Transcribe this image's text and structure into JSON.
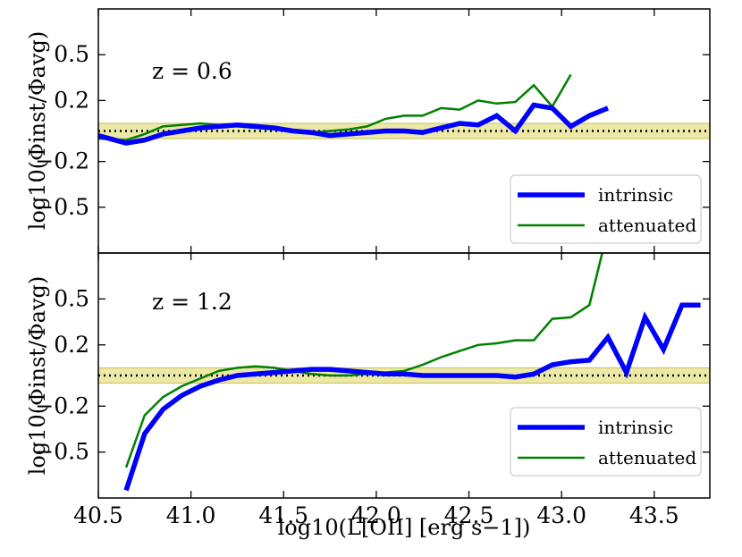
{
  "chart_data": [
    {
      "type": "line",
      "panel": "top",
      "annotation": "z = 0.6",
      "ylabel": "log10(Φinst/Φavg)",
      "xlim": [
        40.5,
        43.8
      ],
      "ylim": [
        -0.8,
        0.8
      ],
      "yticks": [
        {
          "value": 0.5,
          "label": "0.5"
        },
        {
          "value": 0.2,
          "label": "0.2"
        },
        {
          "value": -0.2,
          "label": "−0.2"
        },
        {
          "value": -0.5,
          "label": "−0.5"
        }
      ],
      "reference_line": 0.0,
      "band": [
        -0.05,
        0.05
      ],
      "legend_position": "lower right",
      "series": [
        {
          "name": "intrinsic",
          "color": "#0000ff",
          "x": [
            40.5,
            40.65,
            40.75,
            40.85,
            40.95,
            41.05,
            41.15,
            41.25,
            41.35,
            41.45,
            41.55,
            41.65,
            41.75,
            41.85,
            41.95,
            42.05,
            42.15,
            42.25,
            42.35,
            42.45,
            42.55,
            42.65,
            42.75,
            42.85,
            42.95,
            43.05,
            43.15,
            43.25
          ],
          "y": [
            -0.03,
            -0.08,
            -0.06,
            -0.02,
            0.0,
            0.02,
            0.03,
            0.04,
            0.03,
            0.02,
            0.0,
            -0.01,
            -0.03,
            -0.02,
            -0.01,
            0.0,
            0.0,
            -0.01,
            0.02,
            0.05,
            0.04,
            0.1,
            0.0,
            0.17,
            0.15,
            0.03,
            0.1,
            0.15
          ]
        },
        {
          "name": "attenuated",
          "color": "#008000",
          "x": [
            40.5,
            40.65,
            40.75,
            40.85,
            40.95,
            41.05,
            41.15,
            41.25,
            41.35,
            41.45,
            41.55,
            41.65,
            41.75,
            41.85,
            41.95,
            42.05,
            42.15,
            42.25,
            42.35,
            42.45,
            42.55,
            42.65,
            42.75,
            42.85,
            42.95,
            43.05
          ],
          "y": [
            -0.05,
            -0.06,
            -0.02,
            0.03,
            0.04,
            0.05,
            0.04,
            0.03,
            0.02,
            0.01,
            0.0,
            -0.01,
            0.0,
            0.01,
            0.03,
            0.08,
            0.1,
            0.1,
            0.15,
            0.14,
            0.2,
            0.18,
            0.19,
            0.3,
            0.16,
            0.37
          ]
        }
      ]
    },
    {
      "type": "line",
      "panel": "bottom",
      "annotation": "z = 1.2",
      "xlabel": "log10(L[OII] [erg s−1])",
      "ylabel": "log10(Φinst/Φavg)",
      "xlim": [
        40.5,
        43.8
      ],
      "ylim": [
        -0.8,
        0.8
      ],
      "xticks": [
        {
          "value": 40.5,
          "label": "40.5"
        },
        {
          "value": 41.0,
          "label": "41.0"
        },
        {
          "value": 41.5,
          "label": "41.5"
        },
        {
          "value": 42.0,
          "label": "42.0"
        },
        {
          "value": 42.5,
          "label": "42.5"
        },
        {
          "value": 43.0,
          "label": "43.0"
        },
        {
          "value": 43.5,
          "label": "43.5"
        }
      ],
      "yticks": [
        {
          "value": 0.5,
          "label": "0.5"
        },
        {
          "value": 0.2,
          "label": "0.2"
        },
        {
          "value": -0.2,
          "label": "−0.2"
        },
        {
          "value": -0.5,
          "label": "−0.5"
        }
      ],
      "reference_line": 0.0,
      "band": [
        -0.05,
        0.05
      ],
      "legend_position": "lower right",
      "series": [
        {
          "name": "intrinsic",
          "color": "#0000ff",
          "x": [
            40.65,
            40.75,
            40.85,
            40.95,
            41.05,
            41.15,
            41.25,
            41.35,
            41.45,
            41.55,
            41.65,
            41.75,
            41.85,
            41.95,
            42.05,
            42.15,
            42.25,
            42.35,
            42.45,
            42.55,
            42.65,
            42.75,
            42.85,
            42.95,
            43.05,
            43.15,
            43.25,
            43.35,
            43.45,
            43.55,
            43.65,
            43.75
          ],
          "y": [
            -0.75,
            -0.38,
            -0.22,
            -0.13,
            -0.07,
            -0.03,
            0.0,
            0.01,
            0.02,
            0.03,
            0.04,
            0.04,
            0.03,
            0.02,
            0.01,
            0.01,
            0.0,
            0.0,
            0.0,
            0.0,
            0.0,
            -0.01,
            0.01,
            0.07,
            0.09,
            0.1,
            0.25,
            0.02,
            0.38,
            0.17,
            0.46,
            0.46
          ]
        },
        {
          "name": "attenuated",
          "color": "#008000",
          "x": [
            40.65,
            40.75,
            40.85,
            40.95,
            41.05,
            41.15,
            41.25,
            41.35,
            41.45,
            41.55,
            41.65,
            41.75,
            41.85,
            41.95,
            42.05,
            42.15,
            42.25,
            42.35,
            42.45,
            42.55,
            42.65,
            42.75,
            42.85,
            42.95,
            43.05,
            43.15,
            43.25
          ],
          "y": [
            -0.6,
            -0.26,
            -0.14,
            -0.07,
            -0.02,
            0.03,
            0.05,
            0.06,
            0.05,
            0.03,
            0.01,
            0.0,
            0.0,
            0.01,
            0.02,
            0.03,
            0.07,
            0.12,
            0.16,
            0.2,
            0.21,
            0.23,
            0.23,
            0.37,
            0.38,
            0.46,
            0.95
          ]
        }
      ]
    }
  ]
}
